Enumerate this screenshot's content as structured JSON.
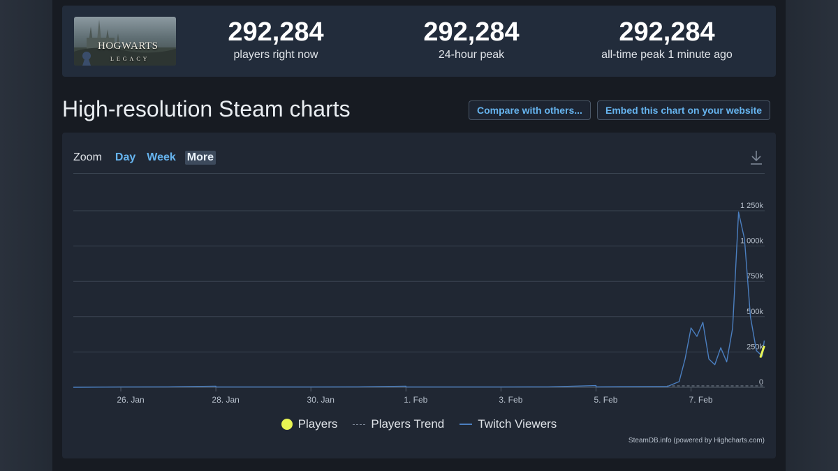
{
  "stats": [
    {
      "value": "292,284",
      "label": "players right now"
    },
    {
      "value": "292,284",
      "label": "24-hour peak"
    },
    {
      "value": "292,284",
      "label": "all-time peak 1 minute ago"
    }
  ],
  "game": {
    "logo_text": "HOGWARTS",
    "logo_sub": "LEGACY"
  },
  "page_title": "High-resolution Steam charts",
  "buttons": {
    "compare": "Compare with others...",
    "embed": "Embed this chart on your website"
  },
  "zoom": {
    "label": "Zoom",
    "options": [
      "Day",
      "Week",
      "More"
    ],
    "active": "More"
  },
  "legend": {
    "players": "Players",
    "trend": "Players Trend",
    "twitch": "Twitch Viewers"
  },
  "credit": "SteamDB.info (powered by Highcharts.com)",
  "colors": {
    "players": "#e9f553",
    "twitch": "#4b7fc0",
    "trend": "#7d8796",
    "accent": "#66b4ef"
  },
  "chart_data": {
    "type": "line",
    "x_tick_labels": [
      "26. Jan",
      "28. Jan",
      "30. Jan",
      "1. Feb",
      "3. Feb",
      "5. Feb",
      "7. Feb"
    ],
    "y_tick_labels": [
      "0",
      "250k",
      "500k",
      "750k",
      "1 000k",
      "1 250k"
    ],
    "ylim": [
      0,
      1250000
    ],
    "xlim_days": [
      25.0,
      8.55
    ],
    "series": [
      {
        "name": "Twitch Viewers",
        "color": "#4b7fc0",
        "points": [
          [
            "25. Jan",
            0
          ],
          [
            "26. Jan",
            2000
          ],
          [
            "27. Jan",
            3000
          ],
          [
            "28. Jan",
            8000
          ],
          [
            "28. Jan",
            2000
          ],
          [
            "29. Jan",
            2000
          ],
          [
            "30. Jan",
            2000
          ],
          [
            "31. Jan",
            3000
          ],
          [
            "1. Feb",
            8000
          ],
          [
            "1. Feb",
            2000
          ],
          [
            "2. Feb",
            2000
          ],
          [
            "3. Feb",
            2000
          ],
          [
            "4. Feb",
            3000
          ],
          [
            "5. Feb",
            12000
          ],
          [
            "5. Feb",
            3000
          ],
          [
            "6. Feb 12:00",
            5000
          ],
          [
            "6. Feb 18:00",
            40000
          ],
          [
            "6. Feb 21:00",
            200000
          ],
          [
            "7. Feb 00:00",
            420000
          ],
          [
            "7. Feb 03:00",
            360000
          ],
          [
            "7. Feb 06:00",
            460000
          ],
          [
            "7. Feb 09:00",
            200000
          ],
          [
            "7. Feb 12:00",
            160000
          ],
          [
            "7. Feb 15:00",
            280000
          ],
          [
            "7. Feb 18:00",
            180000
          ],
          [
            "7. Feb 21:00",
            420000
          ],
          [
            "8. Feb 00:00",
            1240000
          ],
          [
            "8. Feb 03:00",
            1050000
          ],
          [
            "8. Feb 06:00",
            500000
          ],
          [
            "8. Feb 09:00",
            260000
          ],
          [
            "8. Feb 12:00",
            220000
          ],
          [
            "8. Feb 13:00",
            330000
          ]
        ]
      },
      {
        "name": "Players",
        "color": "#e9f553",
        "points": [
          [
            "8. Feb 11:00",
            210000
          ],
          [
            "8. Feb 13:00",
            292284
          ]
        ]
      },
      {
        "name": "Players Trend",
        "color": "#7d8796",
        "points": []
      }
    ]
  }
}
